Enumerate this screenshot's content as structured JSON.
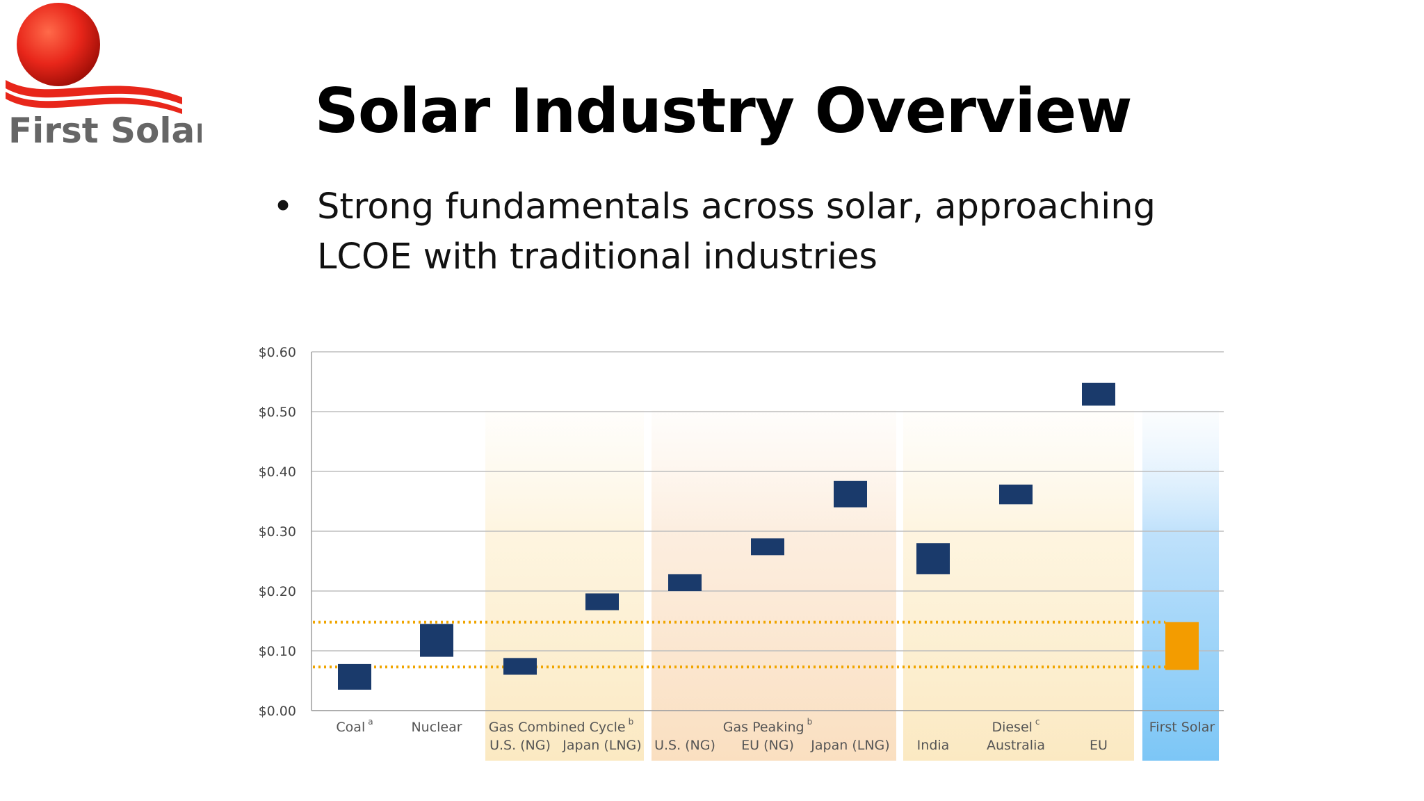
{
  "logo": {
    "text": "First Solar."
  },
  "title": "Solar Industry Overview",
  "bullet": "Strong fundamentals across solar, approaching LCOE with traditional industries",
  "colors": {
    "bar": "#1a3a6b",
    "highlight_bar": "#f39c00",
    "reference_line": "#f0a500",
    "logo_sun": "#e8261a",
    "logo_text": "#666666"
  },
  "chart_data": {
    "type": "bar",
    "subtype": "floating-range",
    "ylim": [
      0,
      0.6
    ],
    "yticks": [
      "$0.00",
      "$0.10",
      "$0.20",
      "$0.30",
      "$0.40",
      "$0.50",
      "$0.60"
    ],
    "grid": true,
    "groups": [
      {
        "label": "Coal",
        "sup": "a",
        "shading": "none"
      },
      {
        "label": "Nuclear",
        "sup": "",
        "shading": "none"
      },
      {
        "label": "Gas Combined Cycle",
        "sup": "b",
        "shading": "yellow"
      },
      {
        "label": "Gas Peaking",
        "sup": "b",
        "shading": "peach"
      },
      {
        "label": "Diesel",
        "sup": "c",
        "shading": "yellow"
      },
      {
        "label": "First Solar",
        "sup": "",
        "shading": "blue"
      }
    ],
    "bars": [
      {
        "group": 0,
        "label": "",
        "low": 0.035,
        "high": 0.078
      },
      {
        "group": 1,
        "label": "",
        "low": 0.09,
        "high": 0.145
      },
      {
        "group": 2,
        "label": "U.S. (NG)",
        "low": 0.06,
        "high": 0.088
      },
      {
        "group": 2,
        "label": "Japan (LNG)",
        "low": 0.168,
        "high": 0.196
      },
      {
        "group": 3,
        "label": "U.S. (NG)",
        "low": 0.2,
        "high": 0.228
      },
      {
        "group": 3,
        "label": "EU (NG)",
        "low": 0.26,
        "high": 0.288
      },
      {
        "group": 3,
        "label": "Japan (LNG)",
        "low": 0.34,
        "high": 0.384
      },
      {
        "group": 4,
        "label": "India",
        "low": 0.228,
        "high": 0.28
      },
      {
        "group": 4,
        "label": "Australia",
        "low": 0.345,
        "high": 0.378
      },
      {
        "group": 4,
        "label": "EU",
        "low": 0.51,
        "high": 0.548
      },
      {
        "group": 5,
        "label": "",
        "low": 0.068,
        "high": 0.148,
        "highlight": true
      }
    ],
    "reference_lines": [
      0.148,
      0.073
    ]
  }
}
